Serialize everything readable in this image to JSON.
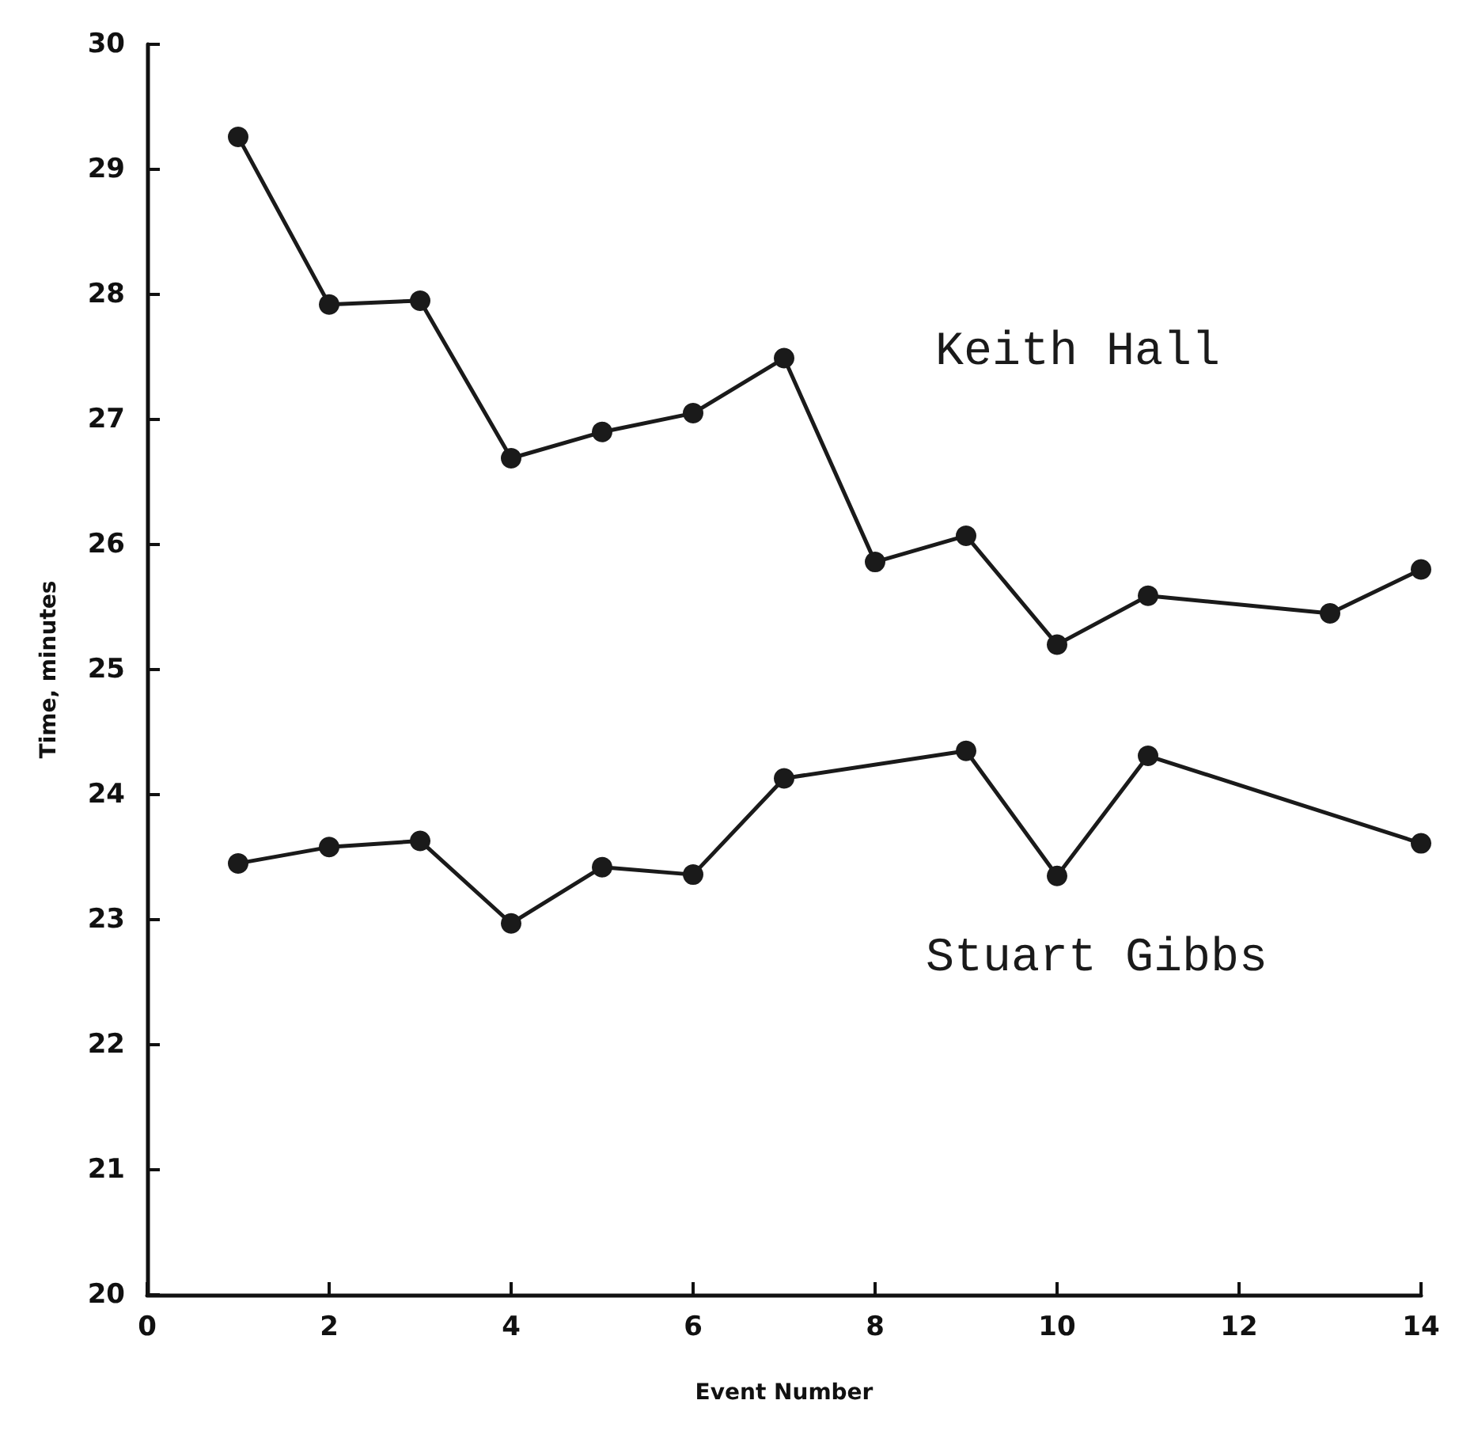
{
  "chart_data": {
    "type": "line",
    "xlabel": "Event Number",
    "ylabel": "Time, minutes",
    "xlim": [
      0,
      14
    ],
    "xticks": [
      0,
      2,
      4,
      6,
      8,
      10,
      12,
      14
    ],
    "ylim": [
      20,
      30
    ],
    "yticks": [
      20,
      21,
      22,
      23,
      24,
      25,
      26,
      27,
      28,
      29,
      30
    ],
    "grid": false,
    "legend": false,
    "marker": "circle",
    "line_style": "solid",
    "series": [
      {
        "name": "Keith Hall",
        "color": "#1a1a1a",
        "x": [
          1,
          2,
          3,
          4,
          5,
          6,
          7,
          8,
          9,
          10,
          11,
          13,
          14
        ],
        "values": [
          29.26,
          27.92,
          27.95,
          26.69,
          26.9,
          27.05,
          27.49,
          25.86,
          26.07,
          25.2,
          25.59,
          25.45,
          25.8
        ]
      },
      {
        "name": "Stuart Gibbs",
        "color": "#1a1a1a",
        "x": [
          1,
          2,
          3,
          4,
          5,
          6,
          7,
          9,
          10,
          11,
          14
        ],
        "values": [
          23.45,
          23.58,
          23.63,
          22.97,
          23.42,
          23.36,
          24.13,
          24.35,
          23.35,
          24.31,
          23.61
        ]
      }
    ]
  }
}
